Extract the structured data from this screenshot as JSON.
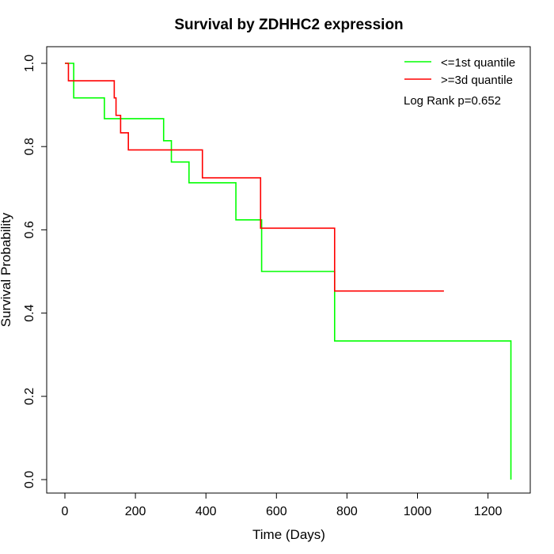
{
  "chart_data": {
    "type": "line",
    "title": "Survival by ZDHHC2 expression",
    "xlabel": "Time (Days)",
    "ylabel": "Survival Probability",
    "xlim": [
      0,
      1265
    ],
    "ylim": [
      0,
      1.0
    ],
    "x_ticks": [
      0,
      200,
      400,
      600,
      800,
      1000,
      1200
    ],
    "y_ticks": [
      0.0,
      0.2,
      0.4,
      0.6,
      0.8,
      1.0
    ],
    "x_tick_labels": [
      "0",
      "200",
      "400",
      "600",
      "800",
      "1000",
      "1200"
    ],
    "y_tick_labels": [
      "0.0",
      "0.2",
      "0.4",
      "0.6",
      "0.8",
      "1.0"
    ],
    "grid": false,
    "legend_position": "top-right",
    "annotation": "Log Rank p=0.652",
    "series": [
      {
        "name": "<=1st quantile",
        "color": "#00ff00",
        "steps": [
          [
            0,
            1.0
          ],
          [
            25,
            0.917
          ],
          [
            112,
            0.867
          ],
          [
            280,
            0.814
          ],
          [
            302,
            0.763
          ],
          [
            352,
            0.713
          ],
          [
            485,
            0.624
          ],
          [
            558,
            0.5
          ],
          [
            765,
            0.333
          ],
          [
            1265,
            0.0
          ]
        ]
      },
      {
        "name": ">=3d quantile",
        "color": "#ff0000",
        "steps": [
          [
            0,
            1.0
          ],
          [
            10,
            0.958
          ],
          [
            140,
            0.917
          ],
          [
            145,
            0.875
          ],
          [
            158,
            0.833
          ],
          [
            180,
            0.792
          ],
          [
            390,
            0.725
          ],
          [
            555,
            0.604
          ],
          [
            765,
            0.453
          ],
          [
            1075,
            0.453
          ]
        ]
      }
    ]
  }
}
